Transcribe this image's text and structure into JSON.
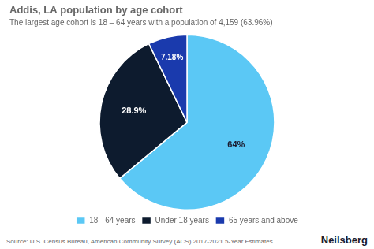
{
  "chart_data": {
    "type": "pie",
    "title": "Addis, LA population by age cohort",
    "subtitle": "The largest age cohort is 18 – 64 years with a population of 4,159 (63.96%)",
    "categories": [
      "18 - 64 years",
      "Under 18 years",
      "65 years and above"
    ],
    "values": [
      63.96,
      28.9,
      7.18
    ],
    "value_labels": [
      "64%",
      "28.9%",
      "7.18%"
    ],
    "colors": [
      "#5bc8f5",
      "#0d1b2e",
      "#1a3aad"
    ],
    "data_labels": true,
    "legend": "bottom",
    "annotations": [
      "Source: U.S. Census Bureau, American Community Survey (ACS) 2017-2021 5-Year Estimates",
      "Neilsberg"
    ]
  }
}
